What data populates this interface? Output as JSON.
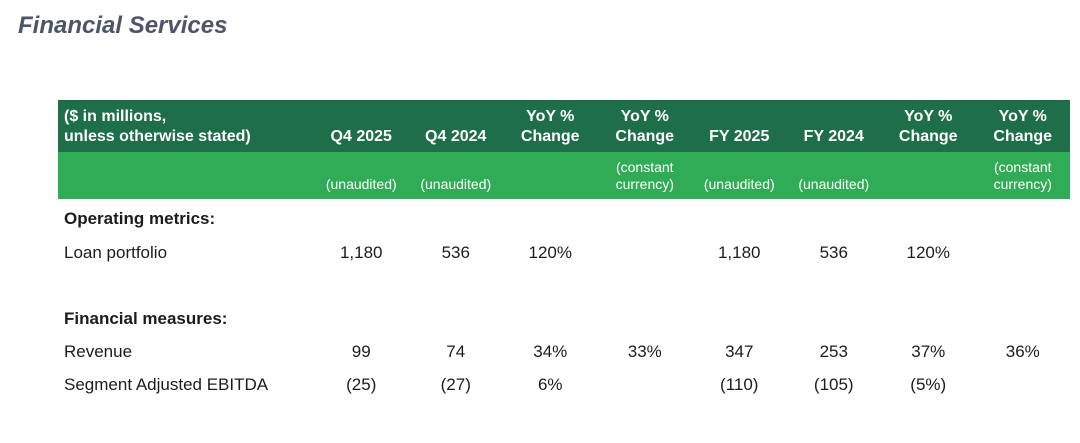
{
  "page": {
    "title": "Financial Services"
  },
  "colors": {
    "header_dark_green": "#1e6e49",
    "header_light_green": "#2fac55",
    "header_text": "#ffffff",
    "title_text": "#4d5668",
    "body_text": "#1c1c1c"
  },
  "table": {
    "unit_label": "($ in millions,\nunless otherwise stated)",
    "columns": [
      "Q4 2025",
      "Q4 2024",
      "YoY %\nChange",
      "YoY %\nChange",
      "FY 2025",
      "FY 2024",
      "YoY %\nChange",
      "YoY %\nChange"
    ],
    "subheaders": [
      "(unaudited)",
      "(unaudited)",
      "",
      "(constant\ncurrency)",
      "(unaudited)",
      "(unaudited)",
      "",
      "(constant\ncurrency)"
    ],
    "rows": [
      {
        "label": "Operating metrics:",
        "bold": true,
        "values": [
          "",
          "",
          "",
          "",
          "",
          "",
          "",
          ""
        ]
      },
      {
        "label": "Loan portfolio",
        "bold": false,
        "values": [
          "1,180",
          "536",
          "120%",
          "",
          "1,180",
          "536",
          "120%",
          ""
        ]
      },
      {
        "label": "",
        "bold": false,
        "values": [
          "",
          "",
          "",
          "",
          "",
          "",
          "",
          ""
        ]
      },
      {
        "label": "Financial measures:",
        "bold": true,
        "values": [
          "",
          "",
          "",
          "",
          "",
          "",
          "",
          ""
        ]
      },
      {
        "label": "Revenue",
        "bold": false,
        "values": [
          "99",
          "74",
          "34%",
          "33%",
          "347",
          "253",
          "37%",
          "36%"
        ]
      },
      {
        "label": "Segment Adjusted EBITDA",
        "bold": false,
        "values": [
          "(25)",
          "(27)",
          "6%",
          "",
          "(110)",
          "(105)",
          "(5%)",
          ""
        ]
      }
    ]
  }
}
